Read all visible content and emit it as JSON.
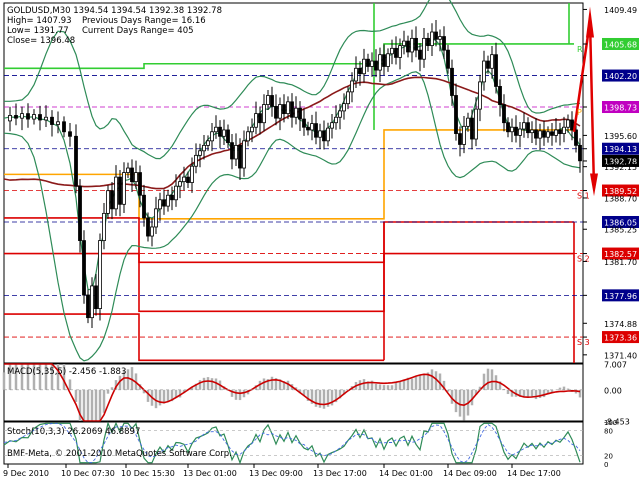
{
  "header": {
    "symbol_line": "GOLDUSD,M30  1394.54 1394.54 1392.38 1392.78",
    "high": "High= 1407.93",
    "low": "Low= 1391.77",
    "close": "Close= 1396.48",
    "prev_range": "Previous Days Range= 16.16",
    "cur_range": "Current Days Range= 405"
  },
  "macd_label": "MACD(5,35,5) -2.456 -1.883",
  "stoch_label": "Stoch(10,3,3) 26.2069 46.8897",
  "copyright": "BMF-Meta, © 2001-2010 MetaQuotes Software Corp.",
  "colors": {
    "background": "#ffffff",
    "candle": "#000000",
    "bollinger": "#2e8b57",
    "ma_long": "#8b1a1a",
    "resistance": "#32cd32",
    "pivot": "#ffa500",
    "support": "#dc0000",
    "magenta": "#c000c0",
    "level_blue": "#00008b",
    "macd_hist": "#b0b0b0",
    "macd_signal": "#cc0000",
    "stoch_main": "#2e8b57",
    "stoch_signal": "#4169e1",
    "arrow": "#e00000"
  },
  "chart_data": {
    "type": "candlestick",
    "symbol": "GOLDUSD",
    "timeframe": "M30",
    "ylim": [
      1370.5,
      1410.2
    ],
    "price_ticks": [
      "1409.49",
      "1405.68",
      "1402.20",
      "1398.73",
      "1395.60",
      "1394.13",
      "1392.78",
      "1392.15",
      "1389.52",
      "1388.70",
      "1386.05",
      "1385.25",
      "1382.57",
      "1381.70",
      "1377.96",
      "1374.88",
      "1373.36",
      "1371.40"
    ],
    "x_labels": [
      "9 Dec 2010",
      "10 Dec 07:30",
      "10 Dec 15:30",
      "13 Dec 01:00",
      "13 Dec 09:00",
      "13 Dec 17:00",
      "14 Dec 01:00",
      "14 Dec 09:00",
      "14 Dec 17:00"
    ],
    "current_price": 1392.78,
    "price_path": [
      [
        0,
        1397.2
      ],
      [
        6,
        1397.8
      ],
      [
        12,
        1397.5
      ],
      [
        18,
        1398.0
      ],
      [
        24,
        1397.4
      ],
      [
        30,
        1397.9
      ],
      [
        36,
        1397.3
      ],
      [
        42,
        1397.6
      ],
      [
        48,
        1396.8
      ],
      [
        54,
        1397.1
      ],
      [
        60,
        1396.0
      ],
      [
        66,
        1395.5
      ],
      [
        72,
        1390.0
      ],
      [
        76,
        1384.0
      ],
      [
        80,
        1378.0
      ],
      [
        84,
        1375.5
      ],
      [
        88,
        1379.0
      ],
      [
        92,
        1376.5
      ],
      [
        96,
        1384.0
      ],
      [
        100,
        1387.0
      ],
      [
        104,
        1389.5
      ],
      [
        108,
        1387.5
      ],
      [
        112,
        1391.0
      ],
      [
        116,
        1388.0
      ],
      [
        120,
        1391.5
      ],
      [
        124,
        1392.0
      ],
      [
        128,
        1390.5
      ],
      [
        132,
        1391.5
      ],
      [
        136,
        1389.0
      ],
      [
        140,
        1386.5
      ],
      [
        144,
        1384.5
      ],
      [
        148,
        1385.5
      ],
      [
        152,
        1387.5
      ],
      [
        156,
        1388.5
      ],
      [
        160,
        1387.8
      ],
      [
        164,
        1389.0
      ],
      [
        168,
        1388.5
      ],
      [
        172,
        1390.0
      ],
      [
        176,
        1390.5
      ],
      [
        180,
        1391.0
      ],
      [
        184,
        1390.4
      ],
      [
        188,
        1392.2
      ],
      [
        192,
        1393.4
      ],
      [
        196,
        1393.9
      ],
      [
        200,
        1394.5
      ],
      [
        204,
        1395.0
      ],
      [
        208,
        1396.0
      ],
      [
        212,
        1396.5
      ],
      [
        216,
        1395.5
      ],
      [
        220,
        1396.2
      ],
      [
        224,
        1394.8
      ],
      [
        228,
        1393.0
      ],
      [
        232,
        1394.5
      ],
      [
        236,
        1392.0
      ],
      [
        240,
        1395.0
      ],
      [
        244,
        1396.0
      ],
      [
        248,
        1396.5
      ],
      [
        252,
        1398.0
      ],
      [
        256,
        1397.0
      ],
      [
        260,
        1399.0
      ],
      [
        264,
        1400.0
      ],
      [
        268,
        1398.8
      ],
      [
        272,
        1397.5
      ],
      [
        276,
        1399.0
      ],
      [
        280,
        1398.0
      ],
      [
        284,
        1399.3
      ],
      [
        288,
        1397.6
      ],
      [
        292,
        1398.6
      ],
      [
        296,
        1397.4
      ],
      [
        300,
        1396.5
      ],
      [
        304,
        1396.2
      ],
      [
        308,
        1396.9
      ],
      [
        312,
        1395.4
      ],
      [
        316,
        1396.1
      ],
      [
        320,
        1395.0
      ],
      [
        324,
        1396.4
      ],
      [
        328,
        1397.0
      ],
      [
        332,
        1397.6
      ],
      [
        336,
        1398.3
      ],
      [
        340,
        1399.1
      ],
      [
        344,
        1400.4
      ],
      [
        348,
        1401.6
      ],
      [
        352,
        1403.0
      ],
      [
        356,
        1402.4
      ],
      [
        360,
        1404.0
      ],
      [
        364,
        1403.2
      ],
      [
        368,
        1403.8
      ],
      [
        372,
        1402.8
      ],
      [
        376,
        1404.5
      ],
      [
        380,
        1403.2
      ],
      [
        384,
        1404.6
      ],
      [
        388,
        1405.2
      ],
      [
        392,
        1404.2
      ],
      [
        396,
        1405.5
      ],
      [
        400,
        1406.0
      ],
      [
        404,
        1404.8
      ],
      [
        408,
        1406.3
      ],
      [
        412,
        1405.0
      ],
      [
        416,
        1404.0
      ],
      [
        420,
        1406.3
      ],
      [
        424,
        1405.5
      ],
      [
        428,
        1407.0
      ],
      [
        432,
        1406.2
      ],
      [
        436,
        1406.5
      ],
      [
        440,
        1405.0
      ],
      [
        444,
        1403.0
      ],
      [
        448,
        1400.0
      ],
      [
        452,
        1395.8
      ],
      [
        456,
        1394.6
      ],
      [
        460,
        1396.6
      ],
      [
        464,
        1397.5
      ],
      [
        468,
        1395.2
      ],
      [
        472,
        1398.5
      ],
      [
        476,
        1401.5
      ],
      [
        480,
        1403.8
      ],
      [
        484,
        1403.0
      ],
      [
        488,
        1404.5
      ],
      [
        492,
        1401.0
      ],
      [
        496,
        1399.0
      ],
      [
        500,
        1397.0
      ],
      [
        504,
        1396.0
      ],
      [
        508,
        1396.5
      ],
      [
        512,
        1395.6
      ],
      [
        516,
        1396.3
      ],
      [
        520,
        1397.0
      ],
      [
        524,
        1395.9
      ],
      [
        528,
        1396.2
      ],
      [
        532,
        1395.3
      ],
      [
        536,
        1396.1
      ],
      [
        540,
        1395.4
      ],
      [
        544,
        1396.0
      ],
      [
        548,
        1395.6
      ],
      [
        552,
        1396.2
      ],
      [
        556,
        1395.8
      ],
      [
        560,
        1396.5
      ],
      [
        564,
        1397.3
      ],
      [
        568,
        1396.2
      ],
      [
        572,
        1394.5
      ],
      [
        576,
        1392.8
      ]
    ],
    "levels": [
      {
        "label": "R",
        "price": 1405.68,
        "segments": [
          [
            0,
            75,
            1403.0
          ],
          [
            75,
            140,
            1403.0
          ],
          [
            140,
            380,
            1403.5
          ],
          [
            380,
            570,
            1405.68
          ]
        ],
        "color": "resistance"
      },
      {
        "label": "P",
        "price": 1398.73,
        "segments": [
          [
            0,
            135,
            1391.3
          ],
          [
            135,
            380,
            1386.4
          ],
          [
            380,
            570,
            1396.2
          ]
        ],
        "color": "pivot"
      },
      {
        "label": "S 1",
        "price": 1389.52,
        "segments": [
          [
            0,
            135,
            1386.5
          ],
          [
            135,
            380,
            1381.6
          ],
          [
            380,
            570,
            1386.05
          ]
        ],
        "color": "support"
      },
      {
        "label": "S 2",
        "price": 1382.57,
        "segments": [
          [
            0,
            135,
            1382.57
          ],
          [
            135,
            380,
            1376.2
          ],
          [
            380,
            570,
            1382.57
          ]
        ],
        "color": "support"
      },
      {
        "label": "S 3",
        "price": 1373.36,
        "segments": [
          [
            0,
            135,
            1375.9
          ],
          [
            135,
            380,
            1370.8
          ]
        ],
        "color": "support"
      }
    ],
    "dashed_levels": [
      {
        "price": 1402.2,
        "color": "level_blue"
      },
      {
        "price": 1398.73,
        "color": "magenta"
      },
      {
        "price": 1394.13,
        "color": "level_blue"
      },
      {
        "price": 1389.52,
        "color": "support"
      },
      {
        "price": 1386.05,
        "color": "level_blue"
      },
      {
        "price": 1382.57,
        "color": "support"
      },
      {
        "price": 1377.96,
        "color": "level_blue"
      },
      {
        "price": 1373.36,
        "color": "support"
      }
    ],
    "macd": {
      "ylim": [
        -8.453,
        7.007
      ],
      "ticks": [
        "7.007",
        "0.00",
        "-8.453"
      ]
    },
    "stoch": {
      "ylim": [
        0,
        100
      ],
      "ticks": [
        "100",
        "80",
        "20",
        "0"
      ]
    }
  }
}
